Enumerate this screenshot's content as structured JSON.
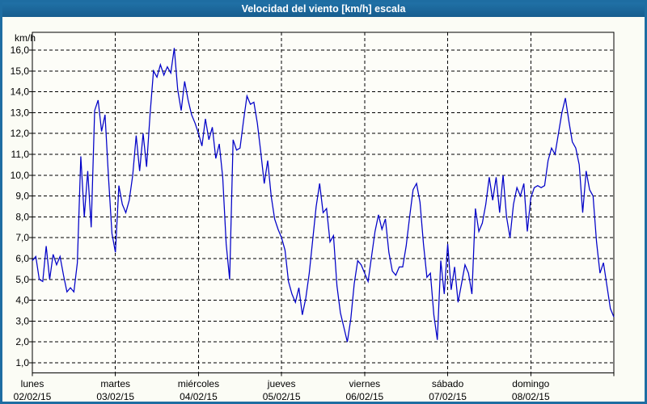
{
  "window": {
    "title": "Velocidad del viento [km/h] escala"
  },
  "colors": {
    "titlebar_top": "#2274ab",
    "titlebar_bottom": "#175d8e",
    "window_border": "#1e6da2",
    "background": "#fbfcf5",
    "plot_background": "#fdfdf8",
    "series_line": "#0000c8",
    "grid": "#000000",
    "frame": "#000000",
    "text": "#000000"
  },
  "chart_data": {
    "type": "line",
    "title": "Velocidad del viento [km/h] escala",
    "unit_label": "km/h",
    "grid": true,
    "legend_position": "none",
    "y_axis": {
      "min": 0.5,
      "max": 16.9,
      "tick_values": [
        16,
        15,
        14,
        13,
        12,
        11,
        10,
        9,
        8,
        7,
        6,
        5,
        4,
        3,
        2,
        1
      ],
      "tick_labels": [
        "16,0",
        "15,0",
        "14,0",
        "13,0",
        "12,0",
        "11,0",
        "10,0",
        "9,0",
        "8,0",
        "7,0",
        "6,0",
        "5,0",
        "4,0",
        "3,0",
        "2,0",
        "1,0"
      ]
    },
    "x_axis": {
      "days": [
        {
          "name": "lunes",
          "date": "02/02/15"
        },
        {
          "name": "martes",
          "date": "03/02/15"
        },
        {
          "name": "miércoles",
          "date": "04/02/15"
        },
        {
          "name": "jueves",
          "date": "05/02/15"
        },
        {
          "name": "viernes",
          "date": "06/02/15"
        },
        {
          "name": "sábado",
          "date": "07/02/15"
        },
        {
          "name": "domingo",
          "date": "08/02/15"
        }
      ],
      "points_per_day": 24
    },
    "series": [
      {
        "name": "Velocidad del viento",
        "unit": "km/h",
        "values": [
          5.9,
          6.1,
          5.0,
          4.9,
          6.6,
          5.0,
          6.2,
          5.7,
          6.1,
          5.2,
          4.4,
          4.6,
          4.4,
          5.8,
          10.9,
          8.0,
          10.2,
          7.5,
          13.1,
          13.6,
          12.1,
          12.9,
          9.9,
          7.2,
          6.3,
          9.5,
          8.6,
          8.2,
          8.8,
          10.0,
          11.9,
          10.2,
          12.0,
          10.4,
          12.9,
          15.0,
          14.7,
          15.3,
          14.8,
          15.2,
          14.9,
          16.1,
          14.1,
          13.1,
          14.5,
          13.6,
          12.9,
          12.5,
          12.0,
          11.4,
          12.7,
          11.7,
          12.3,
          10.8,
          11.5,
          9.9,
          6.7,
          5.0,
          11.7,
          11.2,
          11.3,
          12.6,
          13.8,
          13.4,
          13.5,
          12.5,
          11.1,
          9.6,
          10.7,
          9.0,
          7.9,
          7.4,
          7.0,
          6.4,
          4.9,
          4.3,
          3.9,
          4.6,
          3.3,
          4.1,
          5.3,
          6.9,
          8.5,
          9.6,
          8.2,
          8.4,
          6.8,
          7.1,
          4.7,
          3.4,
          2.7,
          2.0,
          3.1,
          4.8,
          5.9,
          5.7,
          5.3,
          4.9,
          6.1,
          7.3,
          8.1,
          7.4,
          7.9,
          6.3,
          5.4,
          5.2,
          5.6,
          5.6,
          6.6,
          8.0,
          9.3,
          9.6,
          8.7,
          6.7,
          5.1,
          5.3,
          3.3,
          2.1,
          5.9,
          4.3,
          6.7,
          4.5,
          5.6,
          3.9,
          4.8,
          5.7,
          5.3,
          4.3,
          8.4,
          7.3,
          7.7,
          8.6,
          9.9,
          8.8,
          9.9,
          8.2,
          10.0,
          8.0,
          7.0,
          8.6,
          9.4,
          9.0,
          9.6,
          7.3,
          8.9,
          9.4,
          9.5,
          9.4,
          9.5,
          10.7,
          11.3,
          11.0,
          12.0,
          13.0,
          13.7,
          12.6,
          11.6,
          11.3,
          10.5,
          8.2,
          10.2,
          9.3,
          9.0,
          6.8,
          5.3,
          5.8,
          4.7,
          3.6,
          3.2
        ]
      }
    ]
  }
}
